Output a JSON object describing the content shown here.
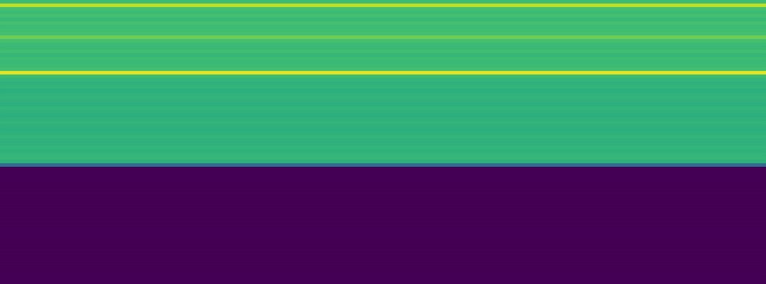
{
  "chart_data": {
    "type": "heatmap",
    "color": "viridis",
    "color_range": [
      0,
      1
    ],
    "tick_labels": false,
    "grid": false,
    "legend": false,
    "cells": [
      [
        0.68
      ],
      [
        0.9
      ],
      [
        0.7
      ],
      [
        0.68
      ],
      [
        0.7
      ],
      [
        0.67
      ],
      [
        0.7
      ],
      [
        0.68
      ],
      [
        0.69
      ],
      [
        0.7
      ],
      [
        0.78
      ],
      [
        0.7
      ],
      [
        0.68
      ],
      [
        0.67
      ],
      [
        0.69
      ],
      [
        0.66
      ],
      [
        0.68
      ],
      [
        0.67
      ],
      [
        0.68
      ],
      [
        0.7
      ],
      [
        0.96
      ],
      [
        0.68
      ],
      [
        0.65
      ],
      [
        0.64
      ],
      [
        0.65
      ],
      [
        0.63
      ],
      [
        0.64
      ],
      [
        0.65
      ],
      [
        0.64
      ],
      [
        0.63
      ],
      [
        0.65
      ],
      [
        0.64
      ],
      [
        0.63
      ],
      [
        0.64
      ],
      [
        0.65
      ],
      [
        0.64
      ],
      [
        0.63
      ],
      [
        0.64
      ],
      [
        0.65
      ],
      [
        0.64
      ],
      [
        0.64
      ],
      [
        0.65
      ],
      [
        0.64
      ],
      [
        0.65
      ],
      [
        0.66
      ],
      [
        0.64
      ],
      [
        0.35
      ],
      [
        0
      ],
      [
        0
      ],
      [
        0
      ],
      [
        0
      ],
      [
        0
      ],
      [
        0
      ],
      [
        0
      ],
      [
        0
      ],
      [
        0
      ],
      [
        0
      ],
      [
        0
      ],
      [
        0
      ],
      [
        0
      ],
      [
        0
      ],
      [
        0
      ],
      [
        0
      ],
      [
        0
      ],
      [
        0
      ],
      [
        0
      ],
      [
        0
      ],
      [
        0
      ],
      [
        0
      ],
      [
        0
      ],
      [
        0
      ],
      [
        0
      ],
      [
        0
      ],
      [
        0
      ],
      [
        0
      ],
      [
        0
      ],
      [
        0
      ],
      [
        0
      ],
      [
        0
      ],
      [
        0
      ]
    ]
  }
}
